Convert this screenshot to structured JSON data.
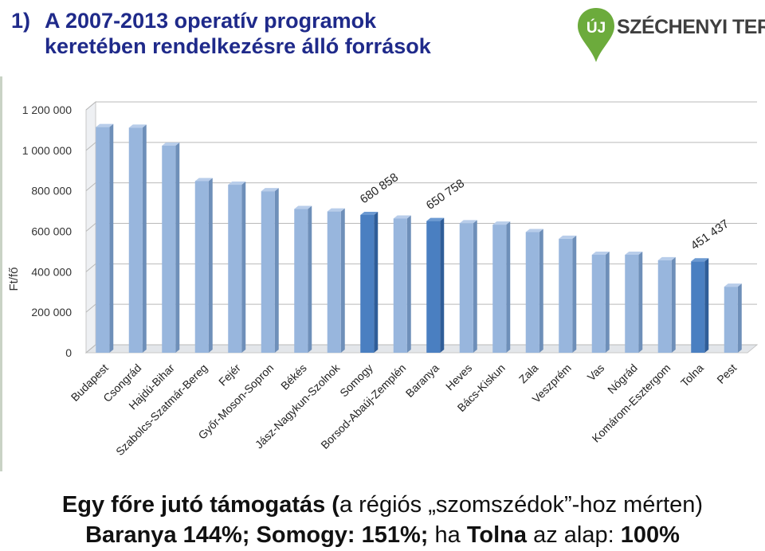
{
  "heading": {
    "number": "1)",
    "line1": "A 2007-2013 operatív programok",
    "line2": "keretében rendelkezésre álló források"
  },
  "logo": {
    "mark": "ÚJ",
    "text": "SZÉCHENYI TERV",
    "color": "#6cab3c"
  },
  "chart_data": {
    "type": "bar",
    "ylabel": "Ft/fő",
    "ylim": [
      0,
      1200000
    ],
    "yticks": [
      "0",
      "200 000",
      "400 000",
      "600 000",
      "800 000",
      "1 000 000",
      "1 200 000"
    ],
    "grid": true,
    "categories": [
      "Budapest",
      "Csongrád",
      "Hajdú-Bihar",
      "Szabolcs-Szatmár-Bereg",
      "Fejér",
      "Győr-Moson-Sopron",
      "Békés",
      "Jász-Nagykun-Szolnok",
      "Somogy",
      "Borsod-Abaúj-Zemplén",
      "Baranya",
      "Heves",
      "Bács-Kiskun",
      "Zala",
      "Veszprém",
      "Vas",
      "Nógrád",
      "Komárom-Esztergom",
      "Tolna",
      "Pest"
    ],
    "values": [
      1115000,
      1112000,
      1023000,
      848000,
      830000,
      798000,
      710000,
      698000,
      680858,
      663000,
      650758,
      640000,
      633000,
      596000,
      563000,
      484000,
      484000,
      457000,
      451437,
      326000
    ],
    "highlighted": [
      8,
      10,
      18
    ],
    "colors": {
      "normal": "#98b6dd",
      "highlight": "#4a7fc1"
    },
    "annotations": [
      {
        "index": 8,
        "text": "680 858"
      },
      {
        "index": 10,
        "text": "650 758"
      },
      {
        "index": 18,
        "text": "451 437"
      }
    ]
  },
  "caption": {
    "line1_bold": "Egy főre jutó támogatás (",
    "line1_rest": "a régiós „szomszédok”-hoz mérten)",
    "line2_a": "Baranya 144%; Somogy: 151%;",
    "line2_b": " ha ",
    "line2_c": "Tolna",
    "line2_d": " az alap: ",
    "line2_e": "100%"
  }
}
